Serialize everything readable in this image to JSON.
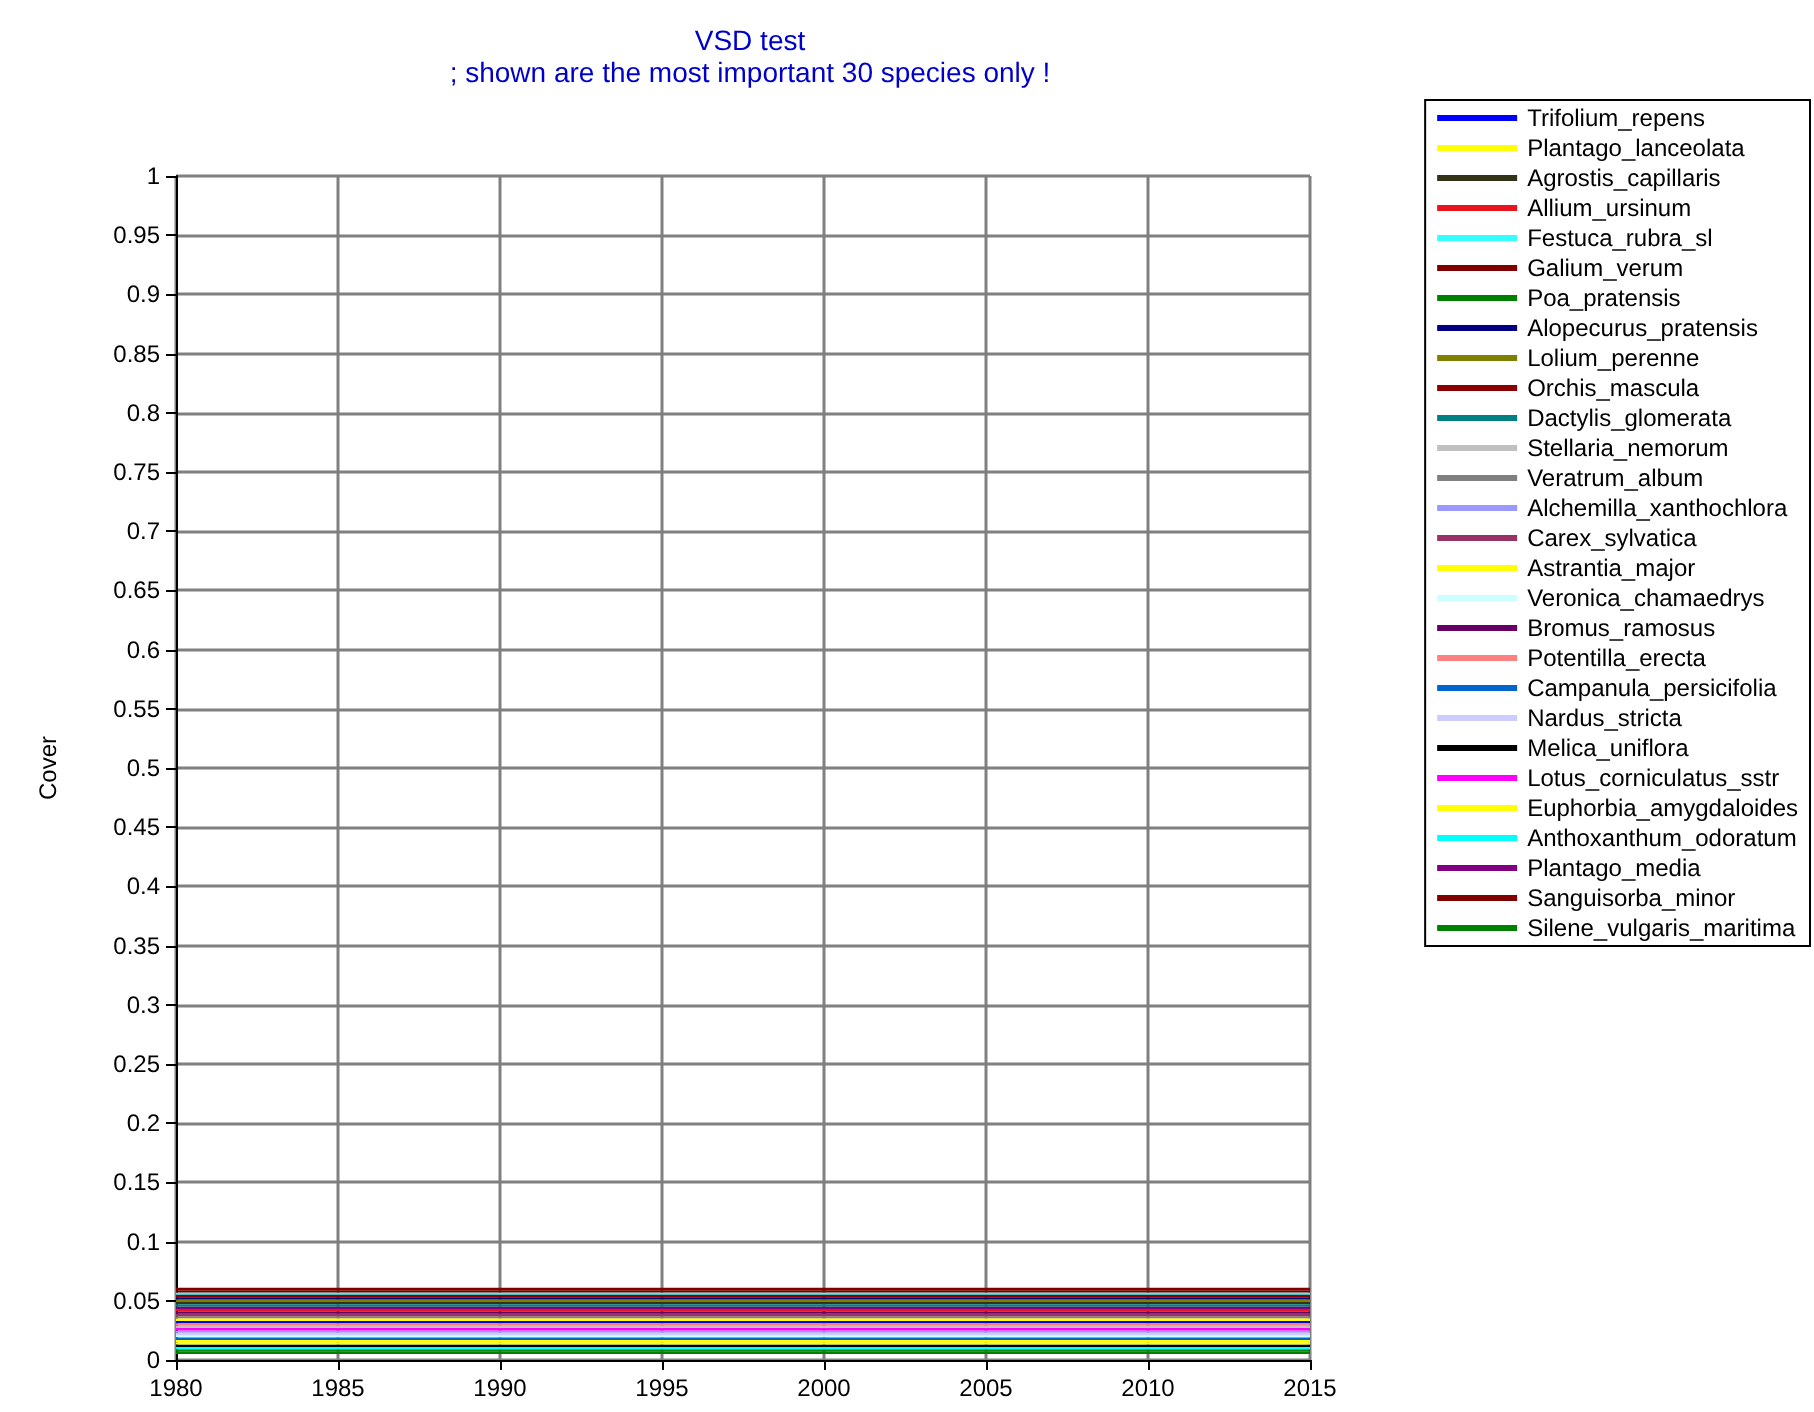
{
  "chart_data": {
    "type": "line",
    "title": "VSD test",
    "subtitle": "; shown are the most important 30 species only !",
    "ylabel": "Cover",
    "x": [
      1980,
      2015
    ],
    "xlim": [
      1980,
      2015
    ],
    "xticks": [
      1980,
      1985,
      1990,
      1995,
      2000,
      2005,
      2010,
      2015
    ],
    "ylim": [
      0,
      1
    ],
    "yticks": [
      0,
      0.05,
      0.1,
      0.15,
      0.2,
      0.25,
      0.3,
      0.35,
      0.4,
      0.45,
      0.5,
      0.55,
      0.6,
      0.65,
      0.7,
      0.75,
      0.8,
      0.85,
      0.9,
      0.95,
      1
    ],
    "grid": true,
    "legend": "right",
    "marker": "none",
    "line_style": "solid",
    "series": [
      {
        "name": "Trifolium_repens",
        "color": "#0000ff",
        "values": [
          0.032,
          0.032
        ]
      },
      {
        "name": "Plantago_lanceolata",
        "color": "#ffff00",
        "values": [
          0.016,
          0.016
        ]
      },
      {
        "name": "Agrostis_capillaris",
        "color": "#333319",
        "values": [
          0.048,
          0.048
        ]
      },
      {
        "name": "Allium_ursinum",
        "color": "#e8141e",
        "values": [
          0.042,
          0.042
        ]
      },
      {
        "name": "Festuca_rubra_sl",
        "color": "#33ffff",
        "values": [
          0.056,
          0.056
        ]
      },
      {
        "name": "Galium_verum",
        "color": "#800000",
        "values": [
          0.058,
          0.058
        ]
      },
      {
        "name": "Poa_pratensis",
        "color": "#008000",
        "values": [
          0.008,
          0.008
        ]
      },
      {
        "name": "Alopecurus_pratensis",
        "color": "#000080",
        "values": [
          0.052,
          0.052
        ]
      },
      {
        "name": "Lolium_perenne",
        "color": "#808000",
        "values": [
          0.05,
          0.05
        ]
      },
      {
        "name": "Orchis_mascula",
        "color": "#8b0000",
        "values": [
          0.054,
          0.054
        ]
      },
      {
        "name": "Dactylis_glomerata",
        "color": "#008080",
        "values": [
          0.046,
          0.046
        ]
      },
      {
        "name": "Stellaria_nemorum",
        "color": "#c0c0c0",
        "values": [
          0.028,
          0.028
        ]
      },
      {
        "name": "Veratrum_album",
        "color": "#808080",
        "values": [
          0.036,
          0.036
        ]
      },
      {
        "name": "Alchemilla_xanthochlora",
        "color": "#9999ff",
        "values": [
          0.024,
          0.024
        ]
      },
      {
        "name": "Carex_sylvatica",
        "color": "#993366",
        "values": [
          0.038,
          0.038
        ]
      },
      {
        "name": "Astrantia_major",
        "color": "#ffff00",
        "values": [
          0.034,
          0.034
        ]
      },
      {
        "name": "Veronica_chamaedrys",
        "color": "#ccffff",
        "values": [
          0.02,
          0.02
        ]
      },
      {
        "name": "Bromus_ramosus",
        "color": "#660066",
        "values": [
          0.04,
          0.04
        ]
      },
      {
        "name": "Potentilla_erecta",
        "color": "#ff8080",
        "values": [
          0.03,
          0.03
        ]
      },
      {
        "name": "Campanula_persicifolia",
        "color": "#0066cc",
        "values": [
          0.018,
          0.018
        ]
      },
      {
        "name": "Nardus_stricta",
        "color": "#ccccff",
        "values": [
          0.022,
          0.022
        ]
      },
      {
        "name": "Melica_uniflora",
        "color": "#000000",
        "values": [
          0.012,
          0.012
        ]
      },
      {
        "name": "Lotus_corniculatus_sstr",
        "color": "#ff00ff",
        "values": [
          0.026,
          0.026
        ]
      },
      {
        "name": "Euphorbia_amygdaloides",
        "color": "#ffff00",
        "values": [
          0.014,
          0.014
        ]
      },
      {
        "name": "Anthoxanthum_odoratum",
        "color": "#00ffff",
        "values": [
          0.01,
          0.01
        ]
      },
      {
        "name": "Plantago_media",
        "color": "#800080",
        "values": [
          0.044,
          0.044
        ]
      },
      {
        "name": "Sanguisorba_minor",
        "color": "#800000",
        "values": [
          0.06,
          0.06
        ]
      },
      {
        "name": "Silene_vulgaris_maritima",
        "color": "#008000",
        "values": [
          0.006,
          0.006
        ]
      }
    ]
  }
}
